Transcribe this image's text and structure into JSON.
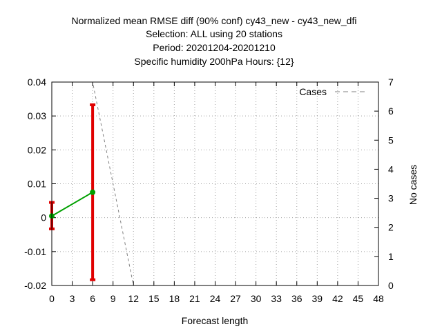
{
  "chart_data": {
    "type": "line",
    "title_lines": [
      "Normalized mean RMSE diff (90% conf) cy43_new - cy43_new_dfi",
      "Selection: ALL using    20 stations",
      "Period: 20201204-20201210",
      "Specific humidity 200hPa   Hours: {12}"
    ],
    "xlabel": "Forecast length",
    "ylabel": "",
    "y2label": "No cases",
    "xlim": [
      0,
      48
    ],
    "ylim": [
      -0.02,
      0.04
    ],
    "y2lim": [
      0,
      7
    ],
    "x_ticks": [
      "0",
      "3",
      "6",
      "9",
      "12",
      "15",
      "18",
      "21",
      "24",
      "27",
      "30",
      "33",
      "36",
      "39",
      "42",
      "45",
      "48"
    ],
    "y_ticks": [
      "0.04",
      "0.03",
      "0.02",
      "0.01",
      "0",
      "-0.01",
      "-0.02"
    ],
    "y2_ticks": [
      "7",
      "6",
      "5",
      "4",
      "3",
      "2",
      "1",
      "0"
    ],
    "grid": true,
    "legend_position": "top-right",
    "series": [
      {
        "name": "",
        "axis": "left",
        "color": "#00a000",
        "x": [
          0,
          6
        ],
        "y": [
          0.0005,
          0.0075
        ],
        "err_low": [
          -0.0033,
          -0.0183
        ],
        "err_high": [
          0.0045,
          0.0333
        ],
        "err_color": "#e00000"
      },
      {
        "name": "Cases",
        "axis": "right",
        "color": "#808080",
        "dash": true,
        "x": [
          0,
          6,
          12,
          18,
          24,
          30,
          36,
          42,
          48
        ],
        "y": [
          7,
          7,
          0,
          0,
          0,
          0,
          0,
          0,
          0
        ]
      }
    ]
  }
}
